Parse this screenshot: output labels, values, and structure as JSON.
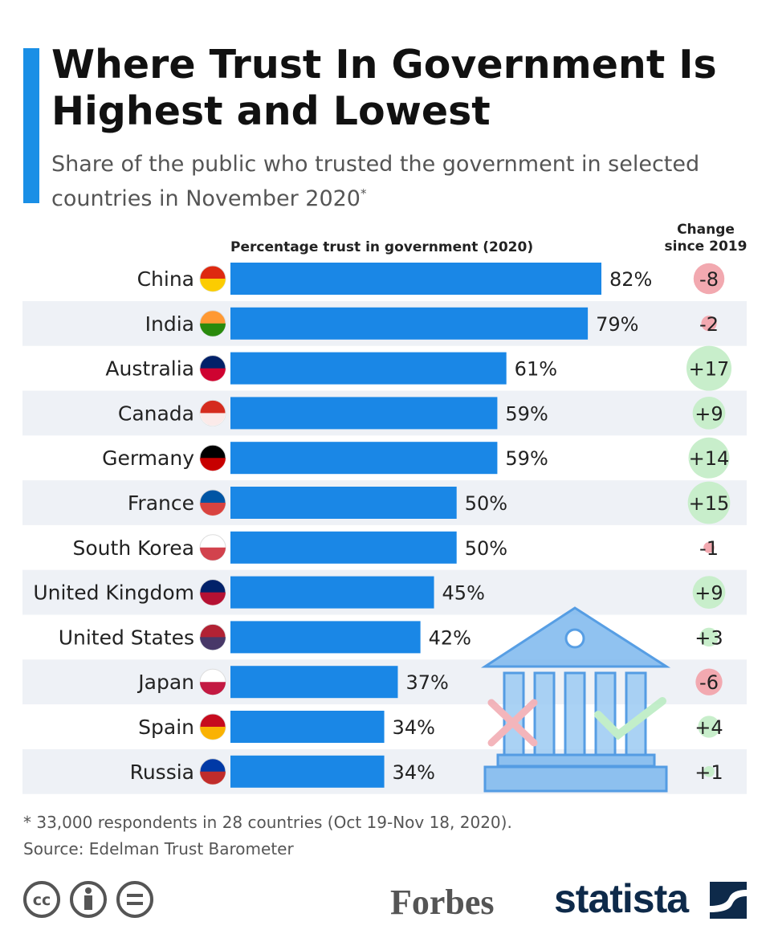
{
  "title": "Where Trust In Government Is Highest and Lowest",
  "subtitle": "Share of the public who trusted the government in selected countries in November 2020",
  "subtitle_mark": "*",
  "footnote": "* 33,000 respondents in 28 countries (Oct 19-Nov 18, 2020).",
  "source": "Source: Edelman Trust Barometer",
  "brand": {
    "forbes": "Forbes",
    "statista": "statista"
  },
  "colors": {
    "bar": "#1a87e6",
    "positive": "#c8eecb",
    "negative": "#f2a9b0",
    "row_alt": "#eef1f6",
    "accent": "#1a8fe6"
  },
  "chart_data": {
    "type": "bar",
    "orientation": "horizontal",
    "xlabel": "Percentage trust in government (2020)",
    "change_label_line1": "Change",
    "change_label_line2": "since 2019",
    "xlim": [
      0,
      100
    ],
    "categories": [
      "China",
      "India",
      "Australia",
      "Canada",
      "Germany",
      "France",
      "South Korea",
      "United Kingdom",
      "United States",
      "Japan",
      "Spain",
      "Russia"
    ],
    "values": [
      82,
      79,
      61,
      59,
      59,
      50,
      50,
      45,
      42,
      37,
      34,
      34
    ],
    "value_labels": [
      "82%",
      "79%",
      "61%",
      "59%",
      "59%",
      "50%",
      "50%",
      "45%",
      "42%",
      "37%",
      "34%",
      "34%"
    ],
    "change": [
      -8,
      -2,
      17,
      9,
      14,
      15,
      -1,
      9,
      3,
      -6,
      4,
      1
    ],
    "change_labels": [
      "-8",
      "-2",
      "+17",
      "+9",
      "+14",
      "+15",
      "-1",
      "+9",
      "+3",
      "-6",
      "+4",
      "+1"
    ],
    "flags": [
      "china-flag",
      "india-flag",
      "australia-flag",
      "canada-flag",
      "germany-flag",
      "france-flag",
      "south-korea-flag",
      "uk-flag",
      "us-flag",
      "japan-flag",
      "spain-flag",
      "russia-flag"
    ]
  }
}
